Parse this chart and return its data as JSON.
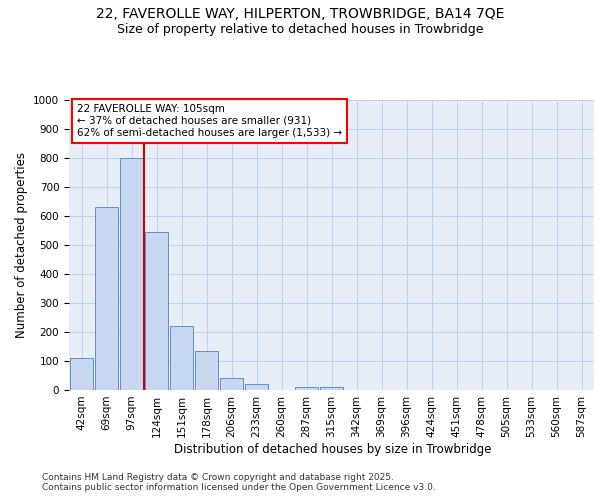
{
  "title1": "22, FAVEROLLE WAY, HILPERTON, TROWBRIDGE, BA14 7QE",
  "title2": "Size of property relative to detached houses in Trowbridge",
  "xlabel": "Distribution of detached houses by size in Trowbridge",
  "ylabel": "Number of detached properties",
  "footer1": "Contains HM Land Registry data © Crown copyright and database right 2025.",
  "footer2": "Contains public sector information licensed under the Open Government Licence v3.0.",
  "annotation_line1": "22 FAVEROLLE WAY: 105sqm",
  "annotation_line2": "← 37% of detached houses are smaller (931)",
  "annotation_line3": "62% of semi-detached houses are larger (1,533) →",
  "bar_color": "#c8d8f0",
  "bar_edge_color": "#6090c8",
  "vline_color": "#cc0000",
  "bin_labels": [
    "42sqm",
    "69sqm",
    "97sqm",
    "124sqm",
    "151sqm",
    "178sqm",
    "206sqm",
    "233sqm",
    "260sqm",
    "287sqm",
    "315sqm",
    "342sqm",
    "369sqm",
    "396sqm",
    "424sqm",
    "451sqm",
    "478sqm",
    "505sqm",
    "533sqm",
    "560sqm",
    "587sqm"
  ],
  "bar_heights": [
    110,
    630,
    800,
    545,
    220,
    135,
    42,
    20,
    0,
    10,
    10,
    0,
    0,
    0,
    0,
    0,
    0,
    0,
    0,
    0,
    0
  ],
  "vline_x": 2.48,
  "ylim": [
    0,
    1000
  ],
  "yticks": [
    0,
    100,
    200,
    300,
    400,
    500,
    600,
    700,
    800,
    900,
    1000
  ],
  "grid_color": "#b8cce8",
  "bg_color": "#e8eef8",
  "title_fontsize": 10,
  "subtitle_fontsize": 9,
  "axis_label_fontsize": 8.5,
  "tick_fontsize": 7.5,
  "annotation_fontsize": 7.5,
  "footer_fontsize": 6.5
}
